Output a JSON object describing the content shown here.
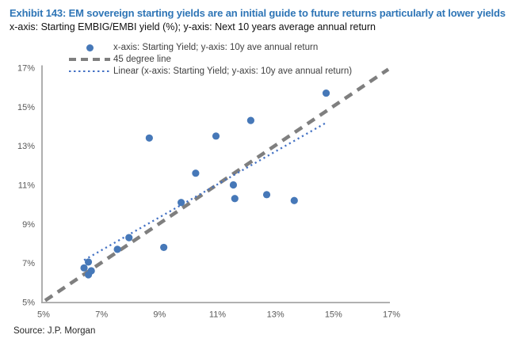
{
  "header": {
    "title": "Exhibit 143: EM sovereign starting yields are an initial guide to future returns particularly at lower yields",
    "subtitle": "x-axis: Starting EMBIG/EMBI yield (%); y-axis: Next 10 years average annual return"
  },
  "legend": {
    "items": [
      {
        "marker": "dot-marker",
        "label": "x-axis: Starting Yield; y-axis: 10y ave annual return"
      },
      {
        "marker": "dashed-line-marker",
        "label": "45 degree line"
      },
      {
        "marker": "dotted-line-marker",
        "label": "Linear (x-axis: Starting Yield; y-axis: 10y ave annual return)"
      }
    ]
  },
  "source": "Source: J.P. Morgan",
  "colors": {
    "title_blue": "#2e75b6",
    "dot_blue": "#4678b8",
    "dashed_gray": "#7f7f7f",
    "dotted_blue": "#4472c4",
    "axis_gray": "#a6a6a6",
    "tick_text": "#595959"
  },
  "chart_data": {
    "type": "scatter",
    "title": "EM sovereign starting yields vs next 10 years average annual return",
    "xlabel": "Starting EMBIG/EMBI yield (%)",
    "ylabel": "Next 10 years average annual return",
    "xlim": [
      5,
      17
    ],
    "ylim": [
      5,
      17
    ],
    "x_ticks": [
      "5%",
      "7%",
      "9%",
      "11%",
      "13%",
      "15%",
      "17%"
    ],
    "y_ticks": [
      "5%",
      "7%",
      "9%",
      "11%",
      "13%",
      "15%",
      "17%"
    ],
    "grid": false,
    "legend_position": "top-center",
    "points": [
      [
        6.45,
        6.75
      ],
      [
        6.6,
        7.05
      ],
      [
        6.6,
        6.4
      ],
      [
        6.7,
        6.6
      ],
      [
        7.6,
        7.7
      ],
      [
        8.0,
        8.3
      ],
      [
        8.7,
        13.4
      ],
      [
        9.2,
        7.8
      ],
      [
        9.8,
        10.1
      ],
      [
        10.3,
        11.6
      ],
      [
        11.0,
        13.5
      ],
      [
        11.6,
        11.0
      ],
      [
        11.65,
        10.3
      ],
      [
        12.2,
        14.3
      ],
      [
        12.75,
        10.5
      ],
      [
        13.7,
        10.2
      ],
      [
        14.8,
        15.7
      ]
    ],
    "lines": {
      "diagonal_45": {
        "from": [
          5,
          5
        ],
        "to": [
          17,
          17
        ]
      },
      "linear_fit": {
        "from": [
          6.45,
          7.15
        ],
        "to": [
          14.82,
          14.2
        ]
      }
    }
  }
}
